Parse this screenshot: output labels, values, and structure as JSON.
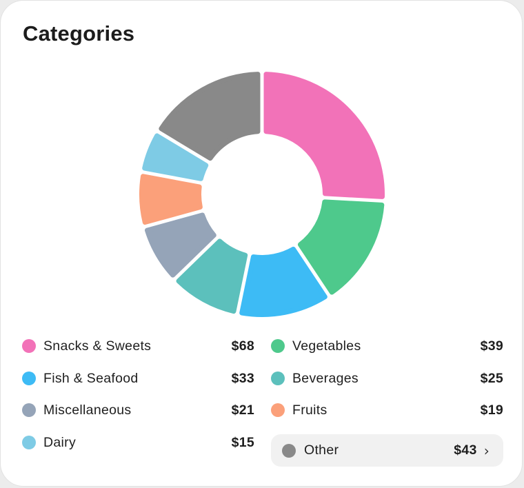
{
  "title": "Categories",
  "chart_data": {
    "type": "pie",
    "variant": "donut",
    "title": "Categories",
    "currency": "$",
    "slices": [
      {
        "label": "Snacks & Sweets",
        "value": 68,
        "display": "$68",
        "color": "#f272b8"
      },
      {
        "label": "Vegetables",
        "value": 39,
        "display": "$39",
        "color": "#4ec98c"
      },
      {
        "label": "Fish & Seafood",
        "value": 33,
        "display": "$33",
        "color": "#3dbbf5"
      },
      {
        "label": "Beverages",
        "value": 25,
        "display": "$25",
        "color": "#5cc0bc"
      },
      {
        "label": "Miscellaneous",
        "value": 21,
        "display": "$21",
        "color": "#95a4b8"
      },
      {
        "label": "Fruits",
        "value": 19,
        "display": "$19",
        "color": "#fba07a"
      },
      {
        "label": "Dairy",
        "value": 15,
        "display": "$15",
        "color": "#7ecbe5"
      },
      {
        "label": "Other",
        "value": 43,
        "display": "$43",
        "color": "#898989"
      }
    ]
  },
  "legend": [
    {
      "label": "Snacks & Sweets",
      "value": "$68",
      "color": "#f272b8"
    },
    {
      "label": "Vegetables",
      "value": "$39",
      "color": "#4ec98c"
    },
    {
      "label": "Fish & Seafood",
      "value": "$33",
      "color": "#3dbbf5"
    },
    {
      "label": "Beverages",
      "value": "$25",
      "color": "#5cc0bc"
    },
    {
      "label": "Miscellaneous",
      "value": "$21",
      "color": "#95a4b8"
    },
    {
      "label": "Fruits",
      "value": "$19",
      "color": "#fba07a"
    },
    {
      "label": "Dairy",
      "value": "$15",
      "color": "#7ecbe5"
    }
  ],
  "other": {
    "label": "Other",
    "value": "$43",
    "color": "#898989",
    "icon": "chevron-right-icon"
  }
}
